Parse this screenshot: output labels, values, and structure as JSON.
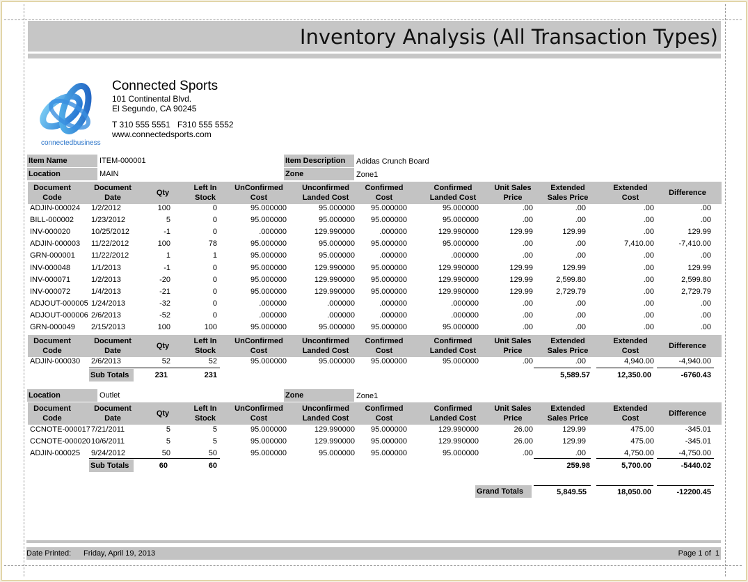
{
  "report_title": "Inventory Analysis (All Transaction Types)",
  "logo": {
    "icon": "connected-business-logo",
    "caption": "connectedbusiness",
    "colors": [
      "#1e6fd0",
      "#6fc3f0"
    ]
  },
  "company": {
    "name": "Connected Sports",
    "address1": "101 Continental Blvd.",
    "address2": "El Segundo, CA 90245",
    "phone": "T 310 555 5551   F310 555 5552",
    "website": "www.connectedsports.com"
  },
  "item": {
    "name_label": "Item Name",
    "name_value": "ITEM-000001",
    "desc_label": "Item Description",
    "desc_value": "Adidas Crunch Board"
  },
  "columns": [
    [
      "Document",
      "Code"
    ],
    [
      "Document",
      "Date"
    ],
    [
      "Qty",
      ""
    ],
    [
      "Left In",
      "Stock"
    ],
    [
      "UnConfirmed",
      "Cost"
    ],
    [
      "Unconfirmed",
      "Landed Cost"
    ],
    [
      "Confirmed",
      "Cost"
    ],
    [
      "Confirmed",
      "Landed Cost"
    ],
    [
      "Unit Sales",
      "Price"
    ],
    [
      "Extended",
      "Sales Price"
    ],
    [
      "Extended",
      "Cost"
    ],
    [
      "Difference",
      ""
    ]
  ],
  "sections": [
    {
      "location_label": "Location",
      "location_value": "MAIN",
      "zone_label": "Zone",
      "zone_value": "Zone1",
      "rows": [
        [
          "ADJIN-000024",
          "1/2/2012",
          "100",
          "0",
          "95.000000",
          "95.000000",
          "95.000000",
          "95.000000",
          ".00",
          ".00",
          ".00",
          ".00"
        ],
        [
          "BILL-000002",
          "1/23/2012",
          "5",
          "0",
          "95.000000",
          "95.000000",
          "95.000000",
          "95.000000",
          ".00",
          ".00",
          ".00",
          ".00"
        ],
        [
          "INV-000020",
          "10/25/2012",
          "-1",
          "0",
          ".000000",
          "129.990000",
          ".000000",
          "129.990000",
          "129.99",
          "129.99",
          ".00",
          "129.99"
        ],
        [
          "ADJIN-000003",
          "11/22/2012",
          "100",
          "78",
          "95.000000",
          "95.000000",
          "95.000000",
          "95.000000",
          ".00",
          ".00",
          "7,410.00",
          "-7,410.00"
        ],
        [
          "GRN-000001",
          "11/22/2012",
          "1",
          "1",
          "95.000000",
          "95.000000",
          ".000000",
          ".000000",
          ".00",
          ".00",
          ".00",
          ".00"
        ],
        [
          "INV-000048",
          "1/1/2013",
          "-1",
          "0",
          "95.000000",
          "129.990000",
          "95.000000",
          "129.990000",
          "129.99",
          "129.99",
          ".00",
          "129.99"
        ],
        [
          "INV-000071",
          "1/2/2013",
          "-20",
          "0",
          "95.000000",
          "129.990000",
          "95.000000",
          "129.990000",
          "129.99",
          "2,599.80",
          ".00",
          "2,599.80"
        ],
        [
          "INV-000072",
          "1/4/2013",
          "-21",
          "0",
          "95.000000",
          "129.990000",
          "95.000000",
          "129.990000",
          "129.99",
          "2,729.79",
          ".00",
          "2,729.79"
        ],
        [
          "ADJOUT-000005",
          "1/24/2013",
          "-32",
          "0",
          ".000000",
          ".000000",
          ".000000",
          ".000000",
          ".00",
          ".00",
          ".00",
          ".00"
        ],
        [
          "ADJOUT-000006",
          "2/6/2013",
          "-52",
          "0",
          ".000000",
          ".000000",
          ".000000",
          ".000000",
          ".00",
          ".00",
          ".00",
          ".00"
        ],
        [
          "GRN-000049",
          "2/15/2013",
          "100",
          "100",
          "95.000000",
          "95.000000",
          "95.000000",
          "95.000000",
          ".00",
          ".00",
          ".00",
          ".00"
        ]
      ],
      "rows2": [
        [
          "ADJIN-000030",
          "2/6/2013",
          "52",
          "52",
          "95.000000",
          "95.000000",
          "95.000000",
          "95.000000",
          ".00",
          ".00",
          "4,940.00",
          "-4,940.00"
        ]
      ],
      "subtotal_label": "Sub Totals",
      "subtotals": {
        "qty": "231",
        "stock": "231",
        "ext_sales": "5,589.57",
        "ext_cost": "12,350.00",
        "diff": "-6760.43"
      }
    },
    {
      "location_label": "Location",
      "location_value": "Outlet",
      "zone_label": "Zone",
      "zone_value": "Zone1",
      "rows": [
        [
          "CCNOTE-000017",
          "7/21/2011",
          "5",
          "5",
          "95.000000",
          "129.990000",
          "95.000000",
          "129.990000",
          "26.00",
          "129.99",
          "475.00",
          "-345.01"
        ],
        [
          "CCNOTE-000020",
          "10/6/2011",
          "5",
          "5",
          "95.000000",
          "129.990000",
          "95.000000",
          "129.990000",
          "26.00",
          "129.99",
          "475.00",
          "-345.01"
        ],
        [
          "ADJIN-000025",
          "9/24/2012",
          "50",
          "50",
          "95.000000",
          "95.000000",
          "95.000000",
          "95.000000",
          ".00",
          ".00",
          "4,750.00",
          "-4,750.00"
        ]
      ],
      "subtotal_label": "Sub Totals",
      "subtotals": {
        "qty": "60",
        "stock": "60",
        "ext_sales": "259.98",
        "ext_cost": "5,700.00",
        "diff": "-5440.02"
      }
    }
  ],
  "grand_totals": {
    "label": "Grand Totals",
    "ext_sales": "5,849.55",
    "ext_cost": "18,050.00",
    "diff": "-12200.45"
  },
  "footer": {
    "date_label": "Date Printed:",
    "date_value": "Friday, April 19, 2013",
    "page_text": "Page 1 of  1"
  }
}
